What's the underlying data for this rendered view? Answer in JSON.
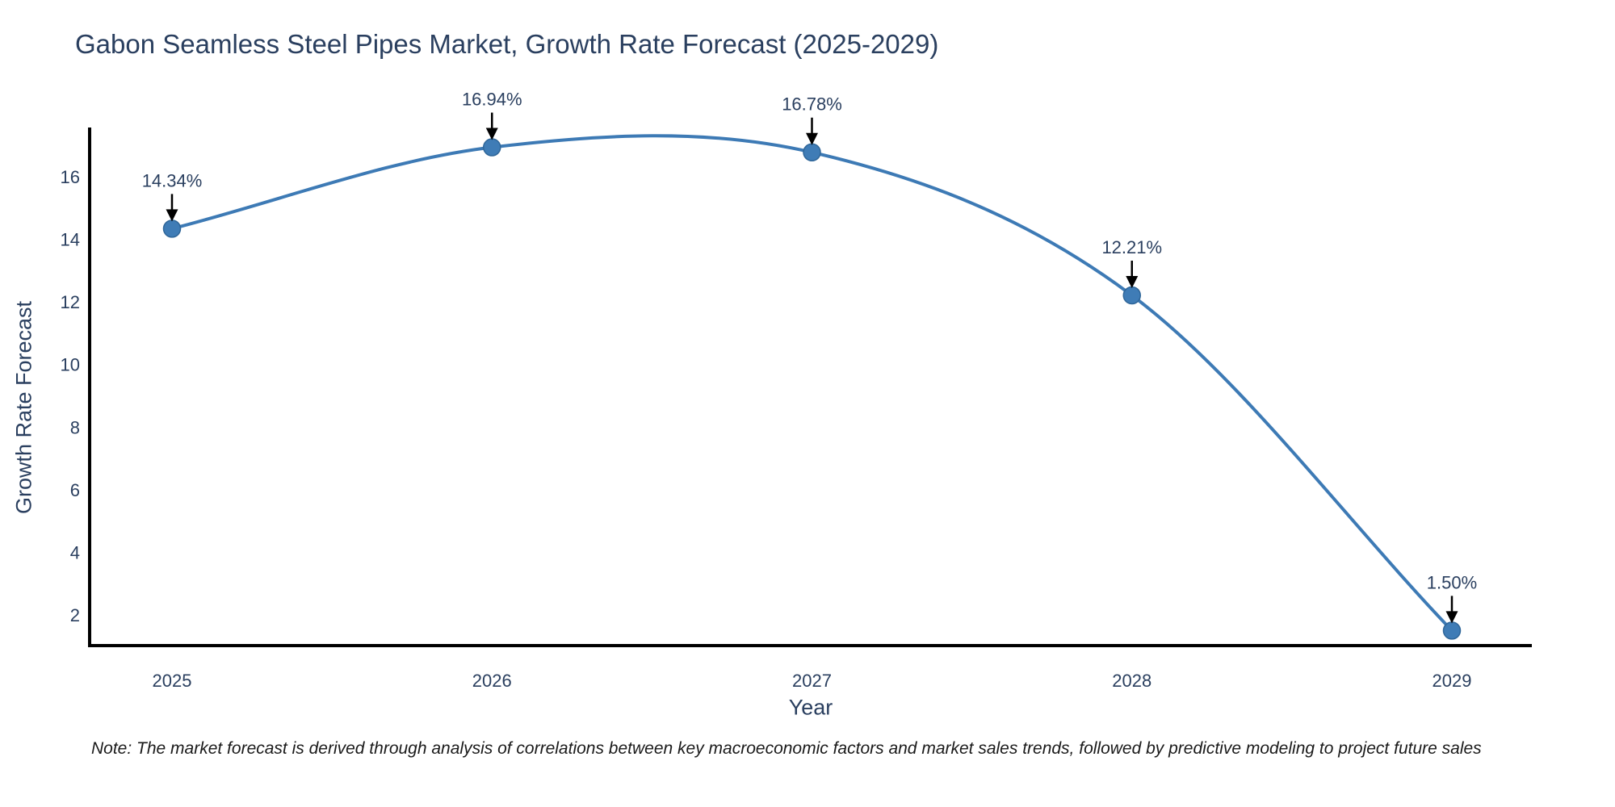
{
  "page": {
    "background": "#ffffff"
  },
  "chart_data": {
    "type": "line",
    "title": "Gabon Seamless Steel Pipes Market, Growth Rate Forecast (2025-2029)",
    "xlabel": "Year",
    "ylabel": "Growth Rate Forecast",
    "categories": [
      "2025",
      "2026",
      "2027",
      "2028",
      "2029"
    ],
    "series": [
      {
        "name": "Growth Rate Forecast",
        "values": [
          14.34,
          16.94,
          16.78,
          12.21,
          1.5
        ]
      }
    ],
    "point_labels": [
      "14.34%",
      "16.94%",
      "16.78%",
      "12.21%",
      "1.50%"
    ],
    "yticks": [
      2,
      4,
      6,
      8,
      10,
      12,
      14,
      16
    ],
    "ylim": [
      1.02,
      17.65
    ],
    "line_shape": "spline",
    "grid": false,
    "legend": "none",
    "colors": {
      "line": "#3d7ab5",
      "marker_fill": "#3f7cb6",
      "marker_edge": "#2f6699",
      "axis_line": "#000000",
      "text": "#2a3f5f",
      "annotation_arrow": "#000000",
      "note_text": "#1a1a1a"
    },
    "note": "Note: The market forecast is derived through analysis of correlations between key macroeconomic factors and market sales trends, followed by predictive modeling to project future sales"
  }
}
